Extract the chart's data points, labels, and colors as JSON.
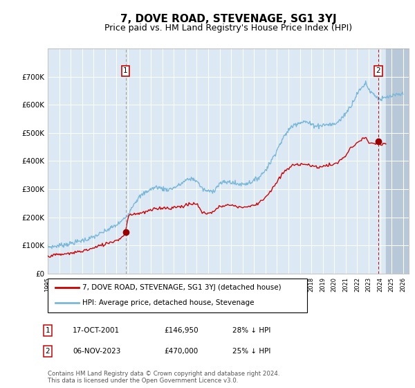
{
  "title": "7, DOVE ROAD, STEVENAGE, SG1 3YJ",
  "subtitle": "Price paid vs. HM Land Registry's House Price Index (HPI)",
  "title_fontsize": 11,
  "subtitle_fontsize": 9,
  "legend_line1": "7, DOVE ROAD, STEVENAGE, SG1 3YJ (detached house)",
  "legend_line2": "HPI: Average price, detached house, Stevenage",
  "transaction1_date": "17-OCT-2001",
  "transaction1_price": 146950,
  "transaction1_note": "28% ↓ HPI",
  "transaction2_date": "06-NOV-2023",
  "transaction2_price": 470000,
  "transaction2_note": "25% ↓ HPI",
  "footnote": "Contains HM Land Registry data © Crown copyright and database right 2024.\nThis data is licensed under the Open Government Licence v3.0.",
  "hpi_color": "#7ab8d9",
  "price_color": "#cc0000",
  "plot_bg_color": "#dce9f5",
  "marker_color": "#990000",
  "vline1_color": "#999999",
  "vline2_color": "#cc0000",
  "ylim": [
    0,
    800000
  ],
  "xlim_start": 1995.0,
  "xlim_end": 2026.5,
  "shade_start": 2024.5,
  "shade_end": 2026.5,
  "shade_color": "#b8c8d8",
  "grid_color": "#ffffff",
  "t1_x": 2001.79,
  "t1_y": 146950,
  "t2_x": 2023.84,
  "t2_y": 470000,
  "hpi_waypoints": [
    [
      1995.0,
      95000
    ],
    [
      1995.5,
      96000
    ],
    [
      1996.0,
      100000
    ],
    [
      1996.5,
      103000
    ],
    [
      1997.0,
      107000
    ],
    [
      1997.5,
      112000
    ],
    [
      1998.0,
      118000
    ],
    [
      1998.5,
      122000
    ],
    [
      1999.0,
      130000
    ],
    [
      1999.5,
      140000
    ],
    [
      2000.0,
      150000
    ],
    [
      2000.5,
      162000
    ],
    [
      2001.0,
      172000
    ],
    [
      2001.5,
      188000
    ],
    [
      2002.0,
      210000
    ],
    [
      2002.5,
      248000
    ],
    [
      2003.0,
      272000
    ],
    [
      2003.5,
      288000
    ],
    [
      2004.0,
      300000
    ],
    [
      2004.5,
      308000
    ],
    [
      2005.0,
      302000
    ],
    [
      2005.5,
      298000
    ],
    [
      2006.0,
      305000
    ],
    [
      2006.5,
      315000
    ],
    [
      2007.0,
      330000
    ],
    [
      2007.5,
      338000
    ],
    [
      2008.0,
      330000
    ],
    [
      2008.5,
      300000
    ],
    [
      2009.0,
      292000
    ],
    [
      2009.5,
      295000
    ],
    [
      2010.0,
      320000
    ],
    [
      2010.5,
      325000
    ],
    [
      2011.0,
      325000
    ],
    [
      2011.5,
      318000
    ],
    [
      2012.0,
      318000
    ],
    [
      2012.5,
      322000
    ],
    [
      2013.0,
      330000
    ],
    [
      2013.5,
      345000
    ],
    [
      2014.0,
      368000
    ],
    [
      2014.5,
      400000
    ],
    [
      2015.0,
      440000
    ],
    [
      2015.5,
      478000
    ],
    [
      2016.0,
      510000
    ],
    [
      2016.5,
      530000
    ],
    [
      2017.0,
      538000
    ],
    [
      2017.5,
      540000
    ],
    [
      2018.0,
      530000
    ],
    [
      2018.5,
      525000
    ],
    [
      2019.0,
      528000
    ],
    [
      2019.5,
      530000
    ],
    [
      2020.0,
      530000
    ],
    [
      2020.5,
      545000
    ],
    [
      2021.0,
      570000
    ],
    [
      2021.5,
      600000
    ],
    [
      2022.0,
      640000
    ],
    [
      2022.5,
      665000
    ],
    [
      2022.75,
      680000
    ],
    [
      2023.0,
      655000
    ],
    [
      2023.5,
      635000
    ],
    [
      2024.0,
      618000
    ],
    [
      2024.5,
      625000
    ],
    [
      2025.0,
      630000
    ],
    [
      2025.5,
      635000
    ],
    [
      2026.0,
      638000
    ]
  ],
  "price_waypoints": [
    [
      1995.0,
      63000
    ],
    [
      1995.5,
      65000
    ],
    [
      1996.0,
      67000
    ],
    [
      1996.5,
      69000
    ],
    [
      1997.0,
      72000
    ],
    [
      1997.5,
      76000
    ],
    [
      1998.0,
      80000
    ],
    [
      1998.5,
      85000
    ],
    [
      1999.0,
      90000
    ],
    [
      1999.5,
      98000
    ],
    [
      2000.0,
      105000
    ],
    [
      2000.5,
      112000
    ],
    [
      2001.0,
      118000
    ],
    [
      2001.5,
      130000
    ],
    [
      2001.79,
      146950
    ],
    [
      2002.0,
      205000
    ],
    [
      2002.5,
      212000
    ],
    [
      2003.0,
      215000
    ],
    [
      2003.5,
      218000
    ],
    [
      2004.0,
      225000
    ],
    [
      2004.5,
      230000
    ],
    [
      2005.0,
      235000
    ],
    [
      2005.5,
      232000
    ],
    [
      2006.0,
      235000
    ],
    [
      2006.5,
      238000
    ],
    [
      2007.0,
      242000
    ],
    [
      2007.5,
      248000
    ],
    [
      2008.0,
      248000
    ],
    [
      2008.5,
      215000
    ],
    [
      2009.0,
      215000
    ],
    [
      2009.5,
      220000
    ],
    [
      2010.0,
      240000
    ],
    [
      2010.5,
      242000
    ],
    [
      2011.0,
      244000
    ],
    [
      2011.5,
      238000
    ],
    [
      2012.0,
      236000
    ],
    [
      2012.5,
      238000
    ],
    [
      2013.0,
      242000
    ],
    [
      2013.5,
      255000
    ],
    [
      2014.0,
      272000
    ],
    [
      2014.5,
      295000
    ],
    [
      2015.0,
      325000
    ],
    [
      2015.5,
      355000
    ],
    [
      2016.0,
      375000
    ],
    [
      2016.5,
      385000
    ],
    [
      2017.0,
      390000
    ],
    [
      2017.5,
      390000
    ],
    [
      2018.0,
      382000
    ],
    [
      2018.5,
      378000
    ],
    [
      2019.0,
      382000
    ],
    [
      2019.5,
      385000
    ],
    [
      2020.0,
      388000
    ],
    [
      2020.5,
      400000
    ],
    [
      2021.0,
      420000
    ],
    [
      2021.5,
      448000
    ],
    [
      2022.0,
      465000
    ],
    [
      2022.5,
      478000
    ],
    [
      2022.75,
      488000
    ],
    [
      2023.0,
      460000
    ],
    [
      2023.5,
      462000
    ],
    [
      2023.84,
      470000
    ],
    [
      2024.0,
      455000
    ],
    [
      2024.5,
      462000
    ]
  ]
}
